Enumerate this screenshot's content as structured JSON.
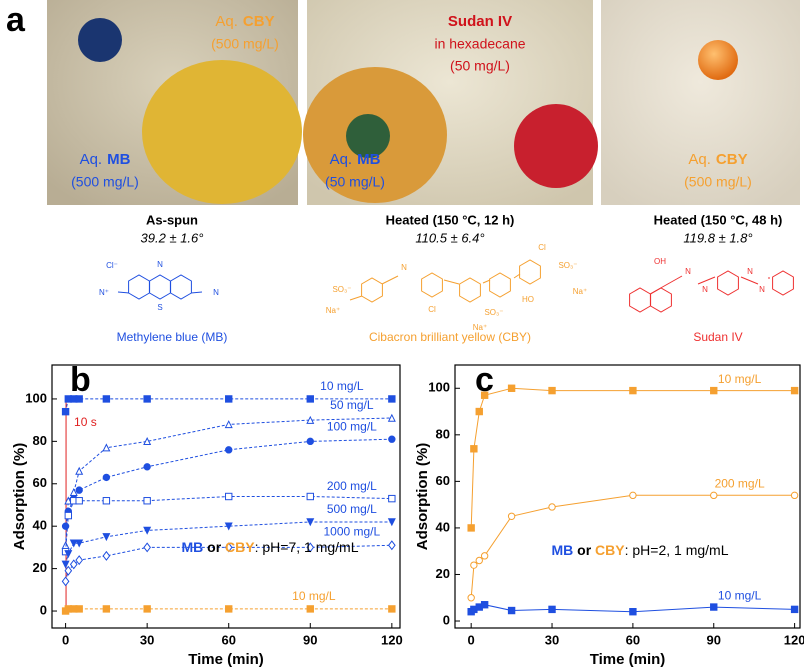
{
  "figure": {
    "panel_a": {
      "letter": "a",
      "photos": [
        {
          "labels": [
            {
              "prefix": "Aq.",
              "emph": "CBY",
              "lines": [
                "(500 mg/L)"
              ],
              "color": "#f5a030"
            },
            {
              "prefix": "Aq.",
              "emph": "MB",
              "lines": [
                "(500 mg/L)"
              ],
              "color": "#1f4fe0"
            }
          ]
        },
        {
          "labels": [
            {
              "emph": "Sudan IV",
              "lines": [
                "in hexadecane",
                "(50 mg/L)"
              ],
              "color": "#d0121b"
            },
            {
              "prefix": "Aq.",
              "emph": "MB",
              "lines": [
                "(50 mg/L)"
              ],
              "color": "#1f4fe0"
            }
          ]
        },
        {
          "labels": [
            {
              "prefix": "Aq.",
              "emph": "CBY",
              "lines": [
                "(500 mg/L)"
              ],
              "color": "#f5a030"
            }
          ]
        }
      ],
      "captions": [
        {
          "title": "As-spun",
          "angle": "39.2 ± 1.6°"
        },
        {
          "title": "Heated (150 °C, 12 h)",
          "angle": "110.5 ± 6.4°"
        },
        {
          "title": "Heated (150 °C, 48 h)",
          "angle": "119.8 ± 1.8°"
        }
      ],
      "structures": [
        {
          "name": "Methylene blue (MB)",
          "color": "#1f4fe0",
          "atoms": [
            "Cl⁻",
            "N",
            "S",
            "N⁺",
            "N"
          ]
        },
        {
          "name": "Cibacron brilliant yellow (CBY)",
          "color": "#f5a030",
          "atoms": [
            "SO₃⁻",
            "Na⁺",
            "N",
            "Cl",
            "SO₃⁻",
            "Na⁺",
            "HO",
            "Cl",
            "SO₃⁻",
            "Na⁺"
          ]
        },
        {
          "name": "Sudan IV",
          "color": "#ee3030",
          "atoms": [
            "OH",
            "N",
            "N",
            "N",
            "N"
          ]
        }
      ]
    }
  },
  "chart_data": [
    {
      "type": "line",
      "panel": "b",
      "xlabel": "Time (min)",
      "ylabel": "Adsorption (%)",
      "x": [
        0,
        1,
        3,
        5,
        15,
        30,
        60,
        90,
        120
      ],
      "xlim": [
        -5,
        123
      ],
      "ylim": [
        -8,
        116
      ],
      "xticks": [
        0,
        30,
        60,
        90,
        120
      ],
      "yticks": [
        0,
        20,
        40,
        60,
        80,
        100
      ],
      "line_style": "dashed",
      "annotation": {
        "text": "10 s",
        "x": 0.167,
        "color": "#e02020"
      },
      "note": [
        {
          "text": "MB",
          "color": "#1f4fe0",
          "bold": true
        },
        {
          "text": " or ",
          "color": "#000",
          "bold": true
        },
        {
          "text": "CBY",
          "color": "#f5a030",
          "bold": true
        },
        {
          "text": ": pH=7, 1 mg/mL",
          "color": "#000",
          "bold": false
        }
      ],
      "series": [
        {
          "name": "10 mg/L",
          "color": "#1f4fe0",
          "marker": "square",
          "values": [
            94,
            100,
            100,
            100,
            100,
            100,
            100,
            100,
            100
          ]
        },
        {
          "name": "50 mg/L",
          "color": "#1f4fe0",
          "marker": "triangle-open",
          "values": [
            31,
            52,
            56,
            66,
            77,
            80,
            88,
            90,
            91
          ]
        },
        {
          "name": "100 mg/L",
          "color": "#1f4fe0",
          "marker": "circle",
          "values": [
            40,
            47,
            53,
            57,
            63,
            68,
            76,
            80,
            81
          ]
        },
        {
          "name": "200 mg/L",
          "color": "#1f4fe0",
          "marker": "square-open",
          "values": [
            28,
            45,
            52,
            52,
            52,
            52,
            54,
            54,
            53
          ]
        },
        {
          "name": "500 mg/L",
          "color": "#1f4fe0",
          "marker": "triangle-down",
          "values": [
            22,
            27,
            32,
            32,
            35,
            38,
            40,
            42,
            42
          ]
        },
        {
          "name": "1000 mg/L",
          "color": "#1f4fe0",
          "marker": "diamond-open",
          "values": [
            14,
            19,
            22,
            24,
            26,
            30,
            30,
            30,
            31
          ]
        },
        {
          "name": "10 mg/L",
          "color": "#f5a030",
          "marker": "square",
          "values": [
            0,
            1,
            1,
            1,
            1,
            1,
            1,
            1,
            1
          ]
        }
      ]
    },
    {
      "type": "line",
      "panel": "c",
      "xlabel": "Time (min)",
      "ylabel": "Adsorption (%)",
      "x": [
        0,
        1,
        3,
        5,
        15,
        30,
        60,
        90,
        120
      ],
      "xlim": [
        -6,
        122
      ],
      "ylim": [
        -3,
        110
      ],
      "xticks": [
        0,
        30,
        60,
        90,
        120
      ],
      "yticks": [
        0,
        20,
        40,
        60,
        80,
        100
      ],
      "line_style": "solid",
      "note": [
        {
          "text": "MB",
          "color": "#1f4fe0",
          "bold": true
        },
        {
          "text": " or ",
          "color": "#000",
          "bold": true
        },
        {
          "text": "CBY",
          "color": "#f5a030",
          "bold": true
        },
        {
          "text": ": pH=2, 1 mg/mL",
          "color": "#000",
          "bold": false
        }
      ],
      "series": [
        {
          "name": "10 mg/L",
          "color": "#f5a030",
          "marker": "square",
          "values": [
            40,
            74,
            90,
            97,
            100,
            99,
            99,
            99,
            99
          ]
        },
        {
          "name": "200 mg/L",
          "color": "#f5a030",
          "marker": "circle-open",
          "values": [
            10,
            24,
            26,
            28,
            45,
            49,
            54,
            54,
            54
          ]
        },
        {
          "name": "10 mg/L",
          "color": "#1f4fe0",
          "marker": "square",
          "values": [
            4,
            5,
            6,
            7,
            4.5,
            5,
            4,
            6,
            5
          ]
        }
      ]
    }
  ]
}
